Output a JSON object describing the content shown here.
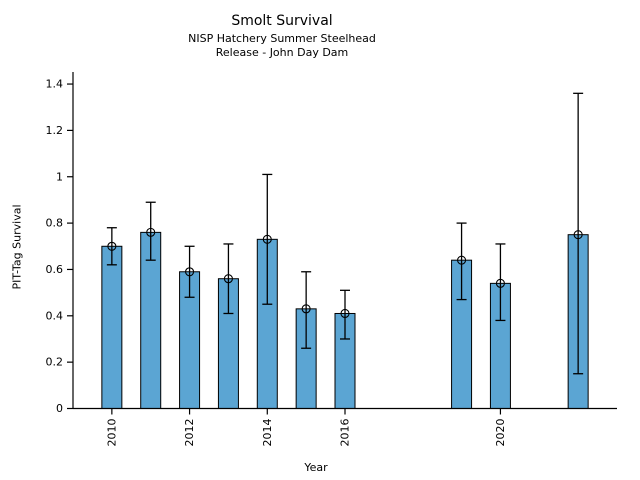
{
  "header": {
    "title": "Smolt Survival",
    "subtitle1": "NISP Hatchery Summer Steelhead",
    "subtitle2": "Release - John Day Dam"
  },
  "chart_data": {
    "type": "bar",
    "title": "Smolt Survival",
    "subtitle": [
      "NISP Hatchery Summer Steelhead",
      "Release - John Day Dam"
    ],
    "xlabel": "Year",
    "ylabel": "PIT-Tag Survival",
    "x": [
      2010,
      2011,
      2012,
      2013,
      2014,
      2015,
      2016,
      2019,
      2020,
      2022
    ],
    "values": [
      0.7,
      0.76,
      0.59,
      0.56,
      0.73,
      0.43,
      0.41,
      0.64,
      0.54,
      0.75
    ],
    "error_low": [
      0.62,
      0.64,
      0.48,
      0.41,
      0.45,
      0.26,
      0.3,
      0.47,
      0.38,
      0.15
    ],
    "error_high": [
      0.78,
      0.89,
      0.7,
      0.71,
      1.01,
      0.59,
      0.51,
      0.8,
      0.71,
      1.36
    ],
    "xlim": [
      2009,
      2023
    ],
    "ylim": [
      0,
      1.452
    ],
    "xticks": {
      "values": [
        2010,
        2012,
        2014,
        2016,
        2020
      ],
      "labels": [
        "2010",
        "2012",
        "2014",
        "2016",
        "2020"
      ]
    },
    "yticks": {
      "values": [
        0,
        0.2,
        0.4,
        0.6,
        0.8,
        1.0,
        1.2,
        1.4
      ],
      "labels": [
        "0",
        "0.2",
        "0.4",
        "0.6",
        "0.8",
        "1",
        "1.2",
        "1.4"
      ]
    },
    "bar_color": "#5BA5D3",
    "edge_color": "#000000",
    "marker": "open-circle",
    "grid": false,
    "legend": null
  }
}
